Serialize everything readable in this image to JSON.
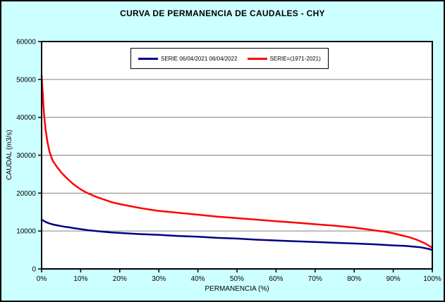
{
  "chart_data": {
    "type": "line",
    "title": "CURVA DE PERMANENCIA DE CAUDALES - CHY",
    "xlabel": "PERMANENCIA (%)",
    "ylabel": "CAUDAL (m3/s)",
    "xlim": [
      0,
      100
    ],
    "ylim": [
      0,
      60000
    ],
    "x_ticks": [
      0,
      10,
      20,
      30,
      40,
      50,
      60,
      70,
      80,
      90,
      100
    ],
    "x_tick_labels": [
      "0%",
      "10%",
      "20%",
      "30%",
      "40%",
      "50%",
      "60%",
      "70%",
      "80%",
      "90%",
      "100%"
    ],
    "y_ticks": [
      0,
      10000,
      20000,
      30000,
      40000,
      50000,
      60000
    ],
    "y_tick_labels": [
      "0",
      "10000",
      "20000",
      "30000",
      "40000",
      "50000",
      "60000"
    ],
    "grid": "horizontal",
    "legend_position": "top-center",
    "background_color": "#CCFFFF",
    "plot_background": "#FFFFFF",
    "gridline_color": "#808080",
    "series": [
      {
        "name": "SERIE 06/04/2021 06/04/2022",
        "color": "#000080",
        "points": [
          [
            0,
            13000
          ],
          [
            0.5,
            12700
          ],
          [
            1,
            12400
          ],
          [
            2,
            12000
          ],
          [
            3,
            11700
          ],
          [
            4,
            11500
          ],
          [
            5,
            11300
          ],
          [
            6,
            11100
          ],
          [
            7,
            11000
          ],
          [
            8,
            10800
          ],
          [
            10,
            10500
          ],
          [
            12,
            10200
          ],
          [
            15,
            9900
          ],
          [
            18,
            9600
          ],
          [
            20,
            9500
          ],
          [
            25,
            9200
          ],
          [
            30,
            9000
          ],
          [
            35,
            8700
          ],
          [
            40,
            8500
          ],
          [
            45,
            8200
          ],
          [
            50,
            8000
          ],
          [
            55,
            7700
          ],
          [
            60,
            7500
          ],
          [
            65,
            7300
          ],
          [
            70,
            7100
          ],
          [
            75,
            6900
          ],
          [
            80,
            6700
          ],
          [
            85,
            6500
          ],
          [
            90,
            6200
          ],
          [
            93,
            6100
          ],
          [
            95,
            5900
          ],
          [
            97,
            5700
          ],
          [
            99,
            5300
          ],
          [
            100,
            5000
          ]
        ]
      },
      {
        "name": "SERIE=(1971-2021)",
        "color": "#FF0000",
        "points": [
          [
            0,
            51000
          ],
          [
            0.3,
            46000
          ],
          [
            0.6,
            41000
          ],
          [
            1,
            37000
          ],
          [
            1.5,
            33500
          ],
          [
            2,
            31000
          ],
          [
            2.5,
            29500
          ],
          [
            3,
            28300
          ],
          [
            4,
            26800
          ],
          [
            5,
            25500
          ],
          [
            6,
            24400
          ],
          [
            7,
            23400
          ],
          [
            8,
            22500
          ],
          [
            9,
            21700
          ],
          [
            10,
            21000
          ],
          [
            11,
            20400
          ],
          [
            12,
            19900
          ],
          [
            14,
            19000
          ],
          [
            16,
            18300
          ],
          [
            18,
            17600
          ],
          [
            20,
            17100
          ],
          [
            22,
            16700
          ],
          [
            25,
            16100
          ],
          [
            28,
            15600
          ],
          [
            30,
            15300
          ],
          [
            35,
            14800
          ],
          [
            40,
            14300
          ],
          [
            45,
            13800
          ],
          [
            50,
            13400
          ],
          [
            55,
            13000
          ],
          [
            60,
            12600
          ],
          [
            65,
            12200
          ],
          [
            70,
            11800
          ],
          [
            75,
            11400
          ],
          [
            80,
            10900
          ],
          [
            83,
            10500
          ],
          [
            85,
            10200
          ],
          [
            88,
            9800
          ],
          [
            90,
            9400
          ],
          [
            92,
            8900
          ],
          [
            94,
            8400
          ],
          [
            96,
            7700
          ],
          [
            98,
            6800
          ],
          [
            99,
            6200
          ],
          [
            100,
            5600
          ]
        ]
      }
    ]
  }
}
